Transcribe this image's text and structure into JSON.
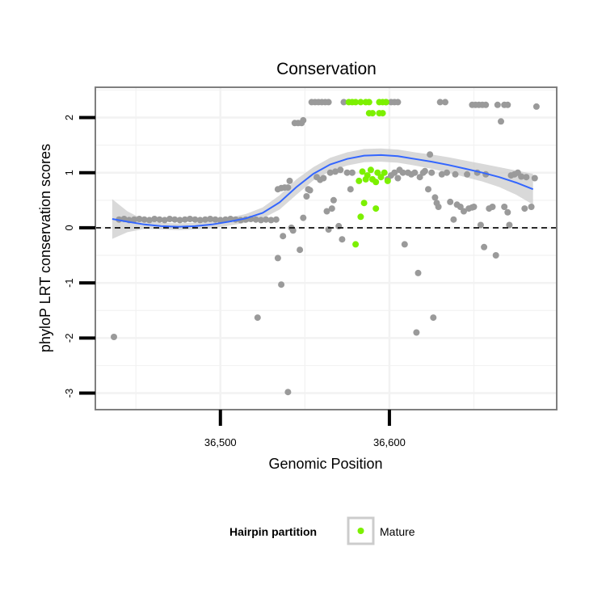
{
  "chart_data": {
    "type": "scatter",
    "title": "Conservation",
    "xlabel": "Genomic Position",
    "ylabel": "phyloP LRT conservation scores",
    "xlim": [
      36426,
      36699
    ],
    "ylim": [
      -3.3,
      2.55
    ],
    "x_ticks": [
      {
        "value": 36500,
        "label": "36,500"
      },
      {
        "value": 36600,
        "label": "36,600"
      }
    ],
    "y_ticks": [
      {
        "value": -3,
        "label": "-3"
      },
      {
        "value": -2,
        "label": "-2"
      },
      {
        "value": -1,
        "label": "-1"
      },
      {
        "value": 0,
        "label": "0"
      },
      {
        "value": 1,
        "label": "1"
      },
      {
        "value": 2,
        "label": "2"
      }
    ],
    "reference_line": {
      "y": 0,
      "style": "dashed",
      "color": "#000000"
    },
    "grid": true,
    "colors": {
      "background": "#ffffff",
      "panel_border": "#7f7f7f",
      "grid": "#f2f2f2",
      "other_points": "#9a9a9a",
      "mature_points": "#7cf000",
      "smooth_line": "#3366ff",
      "confidence_band": "#cccccc"
    },
    "legend": {
      "title": "Hairpin partition",
      "position": "bottom",
      "entries": [
        {
          "label": "Mature",
          "color": "#7cf000"
        }
      ]
    },
    "series": [
      {
        "name": "",
        "color": "#9a9a9a",
        "points": [
          [
            36437,
            -1.98
          ],
          [
            36440,
            0.15
          ],
          [
            36443,
            0.16
          ],
          [
            36446,
            0.14
          ],
          [
            36449,
            0.15
          ],
          [
            36452,
            0.16
          ],
          [
            36455,
            0.15
          ],
          [
            36458,
            0.14
          ],
          [
            36461,
            0.16
          ],
          [
            36464,
            0.15
          ],
          [
            36467,
            0.14
          ],
          [
            36470,
            0.16
          ],
          [
            36473,
            0.15
          ],
          [
            36476,
            0.14
          ],
          [
            36479,
            0.15
          ],
          [
            36482,
            0.16
          ],
          [
            36485,
            0.15
          ],
          [
            36488,
            0.14
          ],
          [
            36491,
            0.15
          ],
          [
            36494,
            0.16
          ],
          [
            36497,
            0.15
          ],
          [
            36500,
            0.14
          ],
          [
            36503,
            0.15
          ],
          [
            36506,
            0.16
          ],
          [
            36509,
            0.15
          ],
          [
            36512,
            0.14
          ],
          [
            36515,
            0.15
          ],
          [
            36518,
            0.16
          ],
          [
            36521,
            0.15
          ],
          [
            36524,
            0.14
          ],
          [
            36527,
            0.15
          ],
          [
            36530,
            0.14
          ],
          [
            36533,
            0.15
          ],
          [
            36522,
            -1.63
          ],
          [
            36534,
            -0.55
          ],
          [
            36536,
            -1.03
          ],
          [
            36537,
            -0.15
          ],
          [
            36534,
            0.7
          ],
          [
            36536,
            0.72
          ],
          [
            36538,
            0.73
          ],
          [
            36540,
            0.73
          ],
          [
            36540,
            -2.98
          ],
          [
            36541,
            0.85
          ],
          [
            36542,
            0.0
          ],
          [
            36543,
            -0.05
          ],
          [
            36544,
            1.9
          ],
          [
            36546,
            1.9
          ],
          [
            36548,
            1.9
          ],
          [
            36549,
            0.18
          ],
          [
            36547,
            -0.4
          ],
          [
            36549,
            1.95
          ],
          [
            36551,
            0.57
          ],
          [
            36552,
            0.7
          ],
          [
            36553,
            0.68
          ],
          [
            36554,
            2.28
          ],
          [
            36556,
            2.28
          ],
          [
            36558,
            2.28
          ],
          [
            36560,
            2.28
          ],
          [
            36562,
            2.28
          ],
          [
            36564,
            2.28
          ],
          [
            36557,
            0.92
          ],
          [
            36559,
            0.87
          ],
          [
            36561,
            0.9
          ],
          [
            36563,
            0.3
          ],
          [
            36564,
            -0.03
          ],
          [
            36565,
            1.0
          ],
          [
            36566,
            0.35
          ],
          [
            36567,
            0.5
          ],
          [
            36568,
            1.02
          ],
          [
            36570,
            0.03
          ],
          [
            36571,
            1.05
          ],
          [
            36572,
            -0.21
          ],
          [
            36573,
            2.28
          ],
          [
            36575,
            1.0
          ],
          [
            36577,
            0.7
          ],
          [
            36578,
            1.0
          ],
          [
            36598,
            2.28
          ],
          [
            36601,
            2.28
          ],
          [
            36603,
            2.28
          ],
          [
            36605,
            2.28
          ],
          [
            36599,
            0.88
          ],
          [
            36601,
            0.95
          ],
          [
            36603,
            1.0
          ],
          [
            36605,
            0.9
          ],
          [
            36606,
            1.05
          ],
          [
            36608,
            1.0
          ],
          [
            36609,
            -0.3
          ],
          [
            36611,
            1.0
          ],
          [
            36613,
            0.97
          ],
          [
            36615,
            1.0
          ],
          [
            36616,
            -1.9
          ],
          [
            36617,
            -0.82
          ],
          [
            36618,
            0.92
          ],
          [
            36620,
            1.0
          ],
          [
            36621,
            1.03
          ],
          [
            36623,
            0.7
          ],
          [
            36624,
            1.33
          ],
          [
            36625,
            1.0
          ],
          [
            36626,
            -1.63
          ],
          [
            36627,
            0.55
          ],
          [
            36628,
            0.45
          ],
          [
            36629,
            0.38
          ],
          [
            36630,
            2.28
          ],
          [
            36633,
            2.28
          ],
          [
            36631,
            0.97
          ],
          [
            36634,
            1.0
          ],
          [
            36636,
            0.47
          ],
          [
            36638,
            0.15
          ],
          [
            36639,
            0.97
          ],
          [
            36640,
            0.42
          ],
          [
            36642,
            0.38
          ],
          [
            36644,
            0.3
          ],
          [
            36646,
            0.97
          ],
          [
            36647,
            0.35
          ],
          [
            36649,
            0.37
          ],
          [
            36650,
            0.38
          ],
          [
            36649,
            2.23
          ],
          [
            36651,
            2.23
          ],
          [
            36653,
            2.23
          ],
          [
            36655,
            2.23
          ],
          [
            36657,
            2.23
          ],
          [
            36652,
            1.0
          ],
          [
            36654,
            0.05
          ],
          [
            36656,
            -0.35
          ],
          [
            36657,
            0.97
          ],
          [
            36659,
            0.35
          ],
          [
            36661,
            0.38
          ],
          [
            36663,
            -0.5
          ],
          [
            36664,
            2.23
          ],
          [
            36666,
            1.93
          ],
          [
            36668,
            2.23
          ],
          [
            36670,
            2.23
          ],
          [
            36668,
            0.38
          ],
          [
            36670,
            0.28
          ],
          [
            36671,
            0.05
          ],
          [
            36672,
            0.95
          ],
          [
            36674,
            0.97
          ],
          [
            36676,
            1.0
          ],
          [
            36678,
            0.93
          ],
          [
            36680,
            0.35
          ],
          [
            36681,
            0.92
          ],
          [
            36684,
            0.38
          ],
          [
            36686,
            0.9
          ],
          [
            36687,
            2.2
          ]
        ]
      },
      {
        "name": "Mature",
        "color": "#7cf000",
        "points": [
          [
            36576,
            2.28
          ],
          [
            36578,
            2.28
          ],
          [
            36580,
            2.28
          ],
          [
            36583,
            2.28
          ],
          [
            36586,
            2.28
          ],
          [
            36588,
            2.28
          ],
          [
            36594,
            2.28
          ],
          [
            36596,
            2.28
          ],
          [
            36598,
            2.28
          ],
          [
            36588,
            2.08
          ],
          [
            36590,
            2.08
          ],
          [
            36594,
            2.08
          ],
          [
            36596,
            2.08
          ],
          [
            36582,
            0.85
          ],
          [
            36584,
            1.02
          ],
          [
            36586,
            0.88
          ],
          [
            36587,
            0.95
          ],
          [
            36589,
            1.05
          ],
          [
            36590,
            0.88
          ],
          [
            36592,
            0.83
          ],
          [
            36593,
            1.0
          ],
          [
            36595,
            0.92
          ],
          [
            36597,
            1.0
          ],
          [
            36599,
            0.85
          ],
          [
            36585,
            0.45
          ],
          [
            36583,
            0.2
          ],
          [
            36592,
            0.35
          ],
          [
            36580,
            -0.3
          ]
        ]
      }
    ],
    "smooth": {
      "color": "#3366ff",
      "x": [
        36436,
        36445,
        36455,
        36465,
        36475,
        36485,
        36495,
        36505,
        36515,
        36525,
        36535,
        36545,
        36555,
        36565,
        36575,
        36585,
        36595,
        36605,
        36615,
        36625,
        36635,
        36645,
        36655,
        36665,
        36675,
        36685
      ],
      "y": [
        0.16,
        0.11,
        0.06,
        0.03,
        0.02,
        0.03,
        0.06,
        0.11,
        0.17,
        0.27,
        0.46,
        0.74,
        0.98,
        1.15,
        1.25,
        1.31,
        1.32,
        1.3,
        1.25,
        1.2,
        1.14,
        1.07,
        1.0,
        0.92,
        0.82,
        0.7
      ],
      "lower": [
        -0.2,
        -0.08,
        -0.02,
        -0.03,
        -0.04,
        -0.03,
        -0.01,
        0.04,
        0.09,
        0.17,
        0.33,
        0.6,
        0.86,
        1.03,
        1.13,
        1.19,
        1.2,
        1.18,
        1.13,
        1.07,
        1.0,
        0.92,
        0.84,
        0.74,
        0.6,
        0.42
      ],
      "upper": [
        0.52,
        0.3,
        0.14,
        0.09,
        0.08,
        0.09,
        0.13,
        0.18,
        0.25,
        0.37,
        0.59,
        0.88,
        1.1,
        1.27,
        1.37,
        1.43,
        1.44,
        1.42,
        1.37,
        1.33,
        1.28,
        1.22,
        1.16,
        1.1,
        1.04,
        0.98
      ]
    }
  }
}
